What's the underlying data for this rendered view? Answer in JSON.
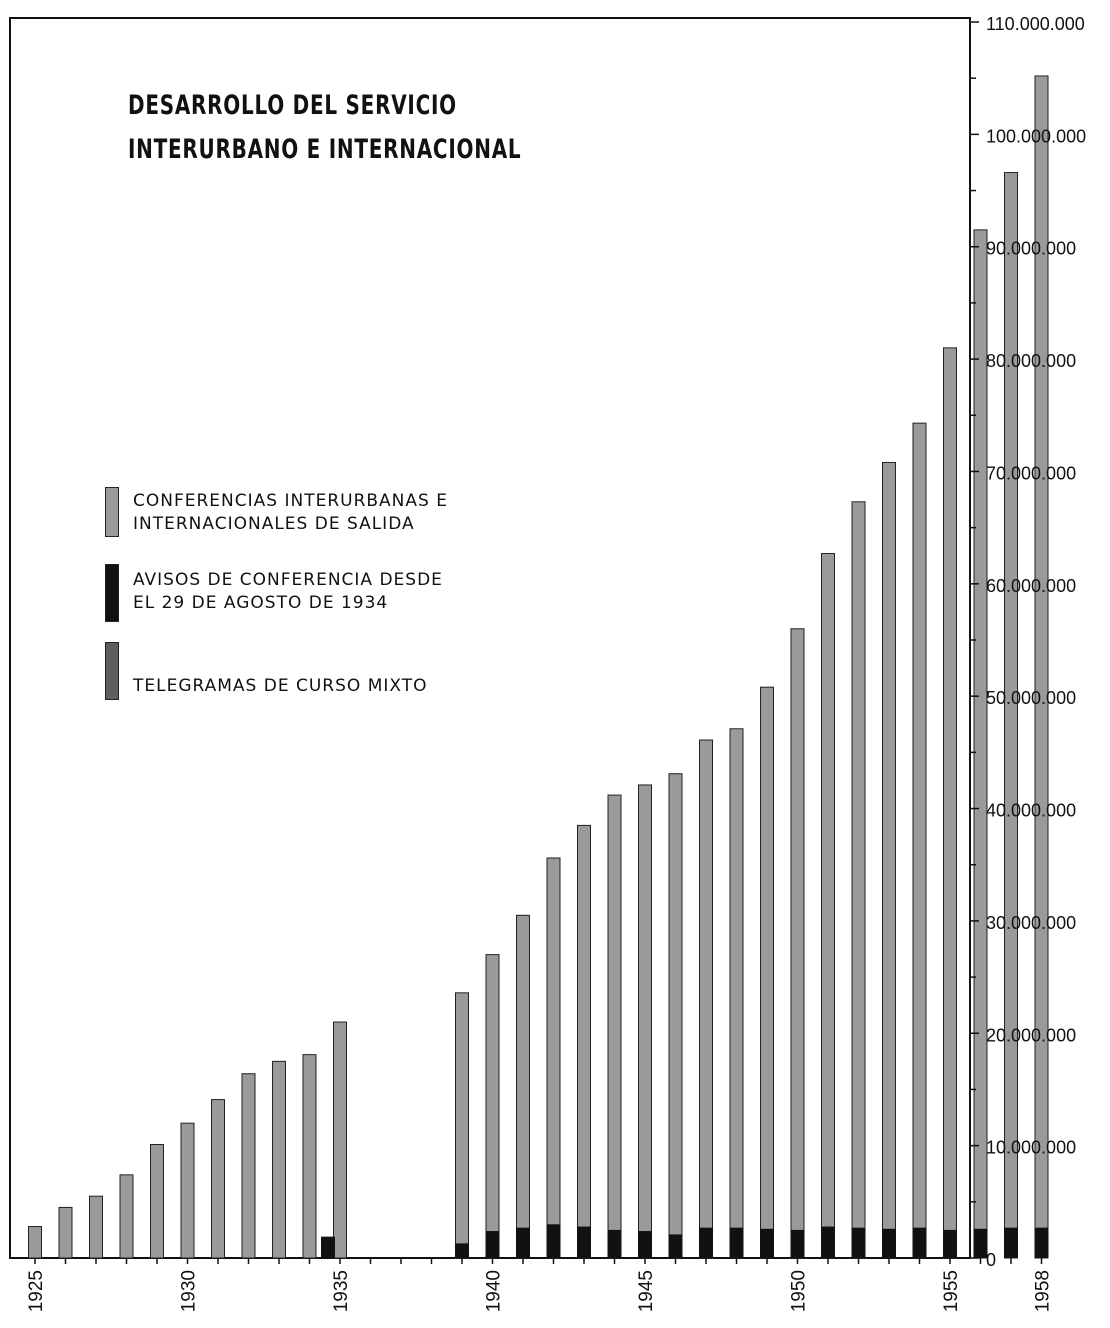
{
  "chart_data": {
    "type": "bar",
    "title_lines": [
      "DESARROLLO DEL SERVICIO",
      "INTERURBANO E INTERNACIONAL"
    ],
    "y_ticks": [
      {
        "value": 0,
        "label": "0"
      },
      {
        "value": 10000000,
        "label": "10.000.000"
      },
      {
        "value": 20000000,
        "label": "20.000.000"
      },
      {
        "value": 30000000,
        "label": "30.000.000"
      },
      {
        "value": 40000000,
        "label": "40.000.000"
      },
      {
        "value": 50000000,
        "label": "50.000.000"
      },
      {
        "value": 60000000,
        "label": "60.000.000"
      },
      {
        "value": 70000000,
        "label": "70.000.000"
      },
      {
        "value": 80000000,
        "label": "80.000.000"
      },
      {
        "value": 90000000,
        "label": "90.000.000"
      },
      {
        "value": 100000000,
        "label": "100.000.000"
      },
      {
        "value": 110000000,
        "label": "110.000.000"
      }
    ],
    "ylim": [
      0,
      110000000
    ],
    "x_tick_labels": [
      "1925",
      "1930",
      "1935",
      "1940",
      "1945",
      "1950",
      "1955",
      "1958"
    ],
    "categories": [
      "1925",
      "1926",
      "1927",
      "1928",
      "1929",
      "1930",
      "1931",
      "1932",
      "1933",
      "1934",
      "1935",
      "1936",
      "1937",
      "1938",
      "1939",
      "1940",
      "1941",
      "1942",
      "1943",
      "1944",
      "1945",
      "1946",
      "1947",
      "1948",
      "1949",
      "1950",
      "1951",
      "1952",
      "1953",
      "1954",
      "1955",
      "1956",
      "1957",
      "1958"
    ],
    "series": [
      {
        "name": "CONFERENCIAS INTERURBANAS E INTERNACIONALES DE SALIDA",
        "color": "#9a9a9a",
        "values": [
          2800000,
          4500000,
          5500000,
          7400000,
          10100000,
          12000000,
          14100000,
          16400000,
          17500000,
          18100000,
          21000000,
          null,
          null,
          null,
          23600000,
          27000000,
          30500000,
          35600000,
          38500000,
          41200000,
          42100000,
          43100000,
          46100000,
          47100000,
          50800000,
          56000000,
          62700000,
          67300000,
          70800000,
          74300000,
          81000000,
          91500000,
          96600000,
          105200000
        ]
      },
      {
        "name": "AVISOS DE CONFERENCIA DESDE EL 29 DE AGOSTO DE 1934",
        "color": "#111111",
        "values": [
          null,
          null,
          null,
          null,
          null,
          null,
          null,
          null,
          null,
          null,
          1900000,
          null,
          null,
          null,
          1300000,
          2400000,
          2700000,
          3000000,
          2800000,
          2500000,
          2400000,
          2100000,
          2700000,
          2700000,
          2600000,
          2500000,
          2800000,
          2700000,
          2600000,
          2700000,
          2500000,
          2600000,
          2700000,
          2700000
        ]
      },
      {
        "name": "TELEGRAMAS DE CURSO MIXTO",
        "color": "#5e5e5e",
        "values": [
          null,
          null,
          null,
          null,
          null,
          null,
          null,
          null,
          null,
          null,
          null,
          null,
          null,
          null,
          null,
          null,
          null,
          null,
          null,
          null,
          null,
          null,
          null,
          null,
          null,
          null,
          null,
          null,
          null,
          null,
          null,
          null,
          null,
          null
        ]
      }
    ],
    "legend": [
      {
        "lines": [
          "CONFERENCIAS INTERURBANAS E",
          "INTERNACIONALES DE SALIDA"
        ],
        "color": "#9a9a9a"
      },
      {
        "lines": [
          "AVISOS DE CONFERENCIA DESDE",
          "EL 29 DE AGOSTO DE 1934"
        ],
        "color": "#111111"
      },
      {
        "lines": [
          "TELEGRAMAS DE CURSO MIXTO"
        ],
        "color": "#5e5e5e"
      }
    ],
    "legend_position": "middle-left",
    "y_axis_position": "right",
    "grid": false
  }
}
